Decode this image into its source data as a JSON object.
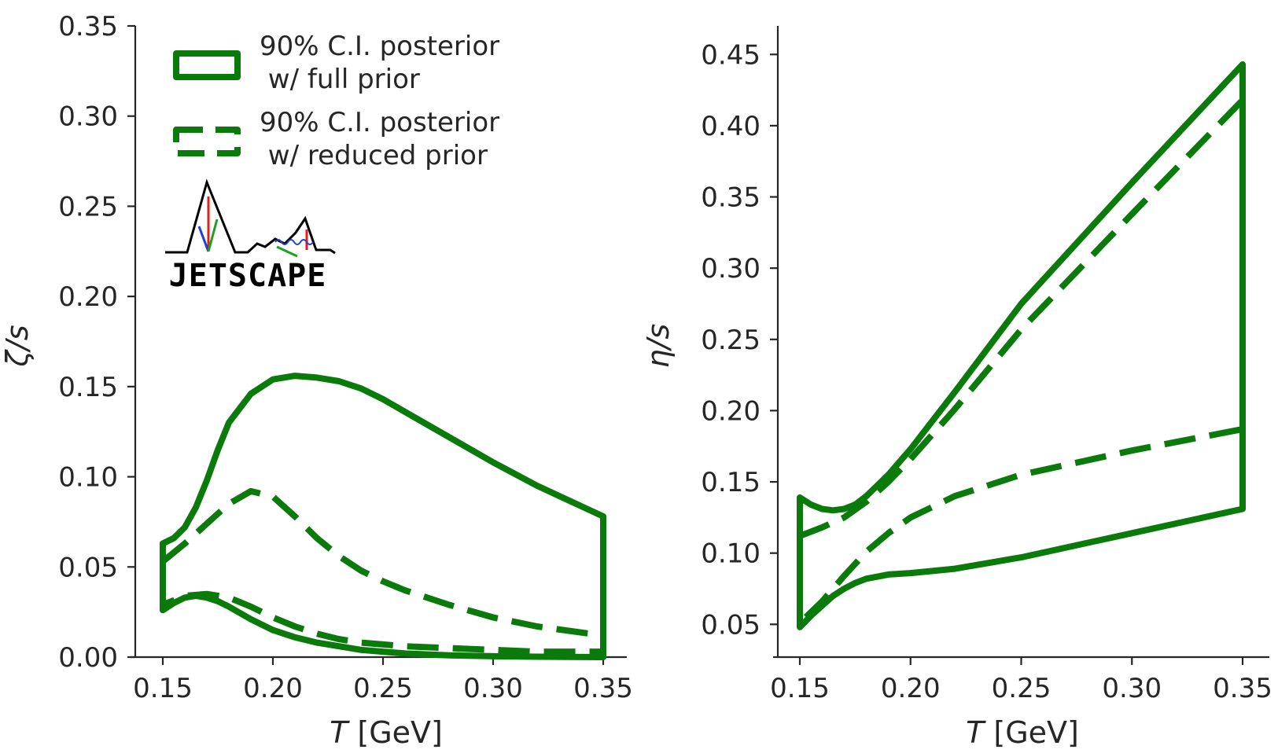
{
  "chart_data": [
    {
      "type": "line",
      "id": "zeta",
      "xlabel": "T [GeV]",
      "ylabel": "ζ/s",
      "xlim": [
        0.14,
        0.355
      ],
      "ylim": [
        0.0,
        0.35
      ],
      "xticks": [
        0.15,
        0.2,
        0.25,
        0.3,
        0.35
      ],
      "yticks": [
        0.0,
        0.05,
        0.1,
        0.15,
        0.2,
        0.25,
        0.3,
        0.35
      ],
      "color": "#0a7a0a",
      "series": [
        {
          "name": "90% C.I. posterior w/ full prior",
          "style": "solid",
          "x": [
            0.15,
            0.155,
            0.16,
            0.165,
            0.17,
            0.175,
            0.18,
            0.19,
            0.2,
            0.21,
            0.22,
            0.23,
            0.24,
            0.25,
            0.26,
            0.28,
            0.3,
            0.32,
            0.35
          ],
          "upper": [
            0.063,
            0.066,
            0.072,
            0.083,
            0.098,
            0.115,
            0.13,
            0.146,
            0.154,
            0.156,
            0.155,
            0.153,
            0.149,
            0.143,
            0.136,
            0.122,
            0.108,
            0.095,
            0.078
          ],
          "lower": [
            0.026,
            0.03,
            0.033,
            0.034,
            0.033,
            0.031,
            0.028,
            0.021,
            0.015,
            0.011,
            0.008,
            0.006,
            0.004,
            0.003,
            0.002,
            0.001,
            0.0005,
            0.0002,
            0.0
          ]
        },
        {
          "name": "90% C.I. posterior w/ reduced prior",
          "style": "dashed",
          "x": [
            0.15,
            0.16,
            0.17,
            0.18,
            0.19,
            0.2,
            0.21,
            0.22,
            0.23,
            0.24,
            0.25,
            0.26,
            0.28,
            0.3,
            0.32,
            0.35
          ],
          "upper": [
            0.053,
            0.063,
            0.074,
            0.085,
            0.092,
            0.089,
            0.078,
            0.066,
            0.056,
            0.048,
            0.042,
            0.037,
            0.029,
            0.022,
            0.017,
            0.012
          ],
          "lower": [
            0.029,
            0.034,
            0.035,
            0.033,
            0.028,
            0.022,
            0.017,
            0.013,
            0.01,
            0.008,
            0.007,
            0.006,
            0.005,
            0.004,
            0.003,
            0.003
          ]
        }
      ]
    },
    {
      "type": "line",
      "id": "eta",
      "xlabel": "T [GeV]",
      "ylabel": "η/s",
      "xlim": [
        0.14,
        0.355
      ],
      "ylim": [
        0.027,
        0.47
      ],
      "xticks": [
        0.15,
        0.2,
        0.25,
        0.3,
        0.35
      ],
      "yticks": [
        0.05,
        0.1,
        0.15,
        0.2,
        0.25,
        0.3,
        0.35,
        0.4,
        0.45
      ],
      "color": "#0a7a0a",
      "series": [
        {
          "name": "90% C.I. posterior w/ full prior",
          "style": "solid",
          "x": [
            0.15,
            0.155,
            0.16,
            0.165,
            0.17,
            0.175,
            0.18,
            0.19,
            0.2,
            0.22,
            0.25,
            0.3,
            0.35
          ],
          "upper": [
            0.139,
            0.134,
            0.131,
            0.13,
            0.131,
            0.134,
            0.14,
            0.155,
            0.173,
            0.213,
            0.275,
            0.36,
            0.443
          ],
          "lower": [
            0.048,
            0.056,
            0.063,
            0.07,
            0.075,
            0.079,
            0.082,
            0.085,
            0.086,
            0.089,
            0.097,
            0.114,
            0.131
          ]
        },
        {
          "name": "90% C.I. posterior w/ reduced prior",
          "style": "dashed",
          "x": [
            0.15,
            0.16,
            0.17,
            0.18,
            0.19,
            0.2,
            0.22,
            0.25,
            0.3,
            0.35
          ],
          "upper": [
            0.112,
            0.118,
            0.125,
            0.136,
            0.15,
            0.166,
            0.201,
            0.257,
            0.338,
            0.418
          ],
          "lower": [
            0.051,
            0.066,
            0.084,
            0.101,
            0.114,
            0.125,
            0.14,
            0.155,
            0.172,
            0.187
          ]
        }
      ]
    }
  ],
  "legend": {
    "items": [
      {
        "line1": "90% C.I. posterior",
        "line2": " w/ full prior"
      },
      {
        "line1": "90% C.I. posterior",
        "line2": " w/ reduced prior"
      }
    ]
  },
  "logo": {
    "text": "JETSCAPE"
  }
}
